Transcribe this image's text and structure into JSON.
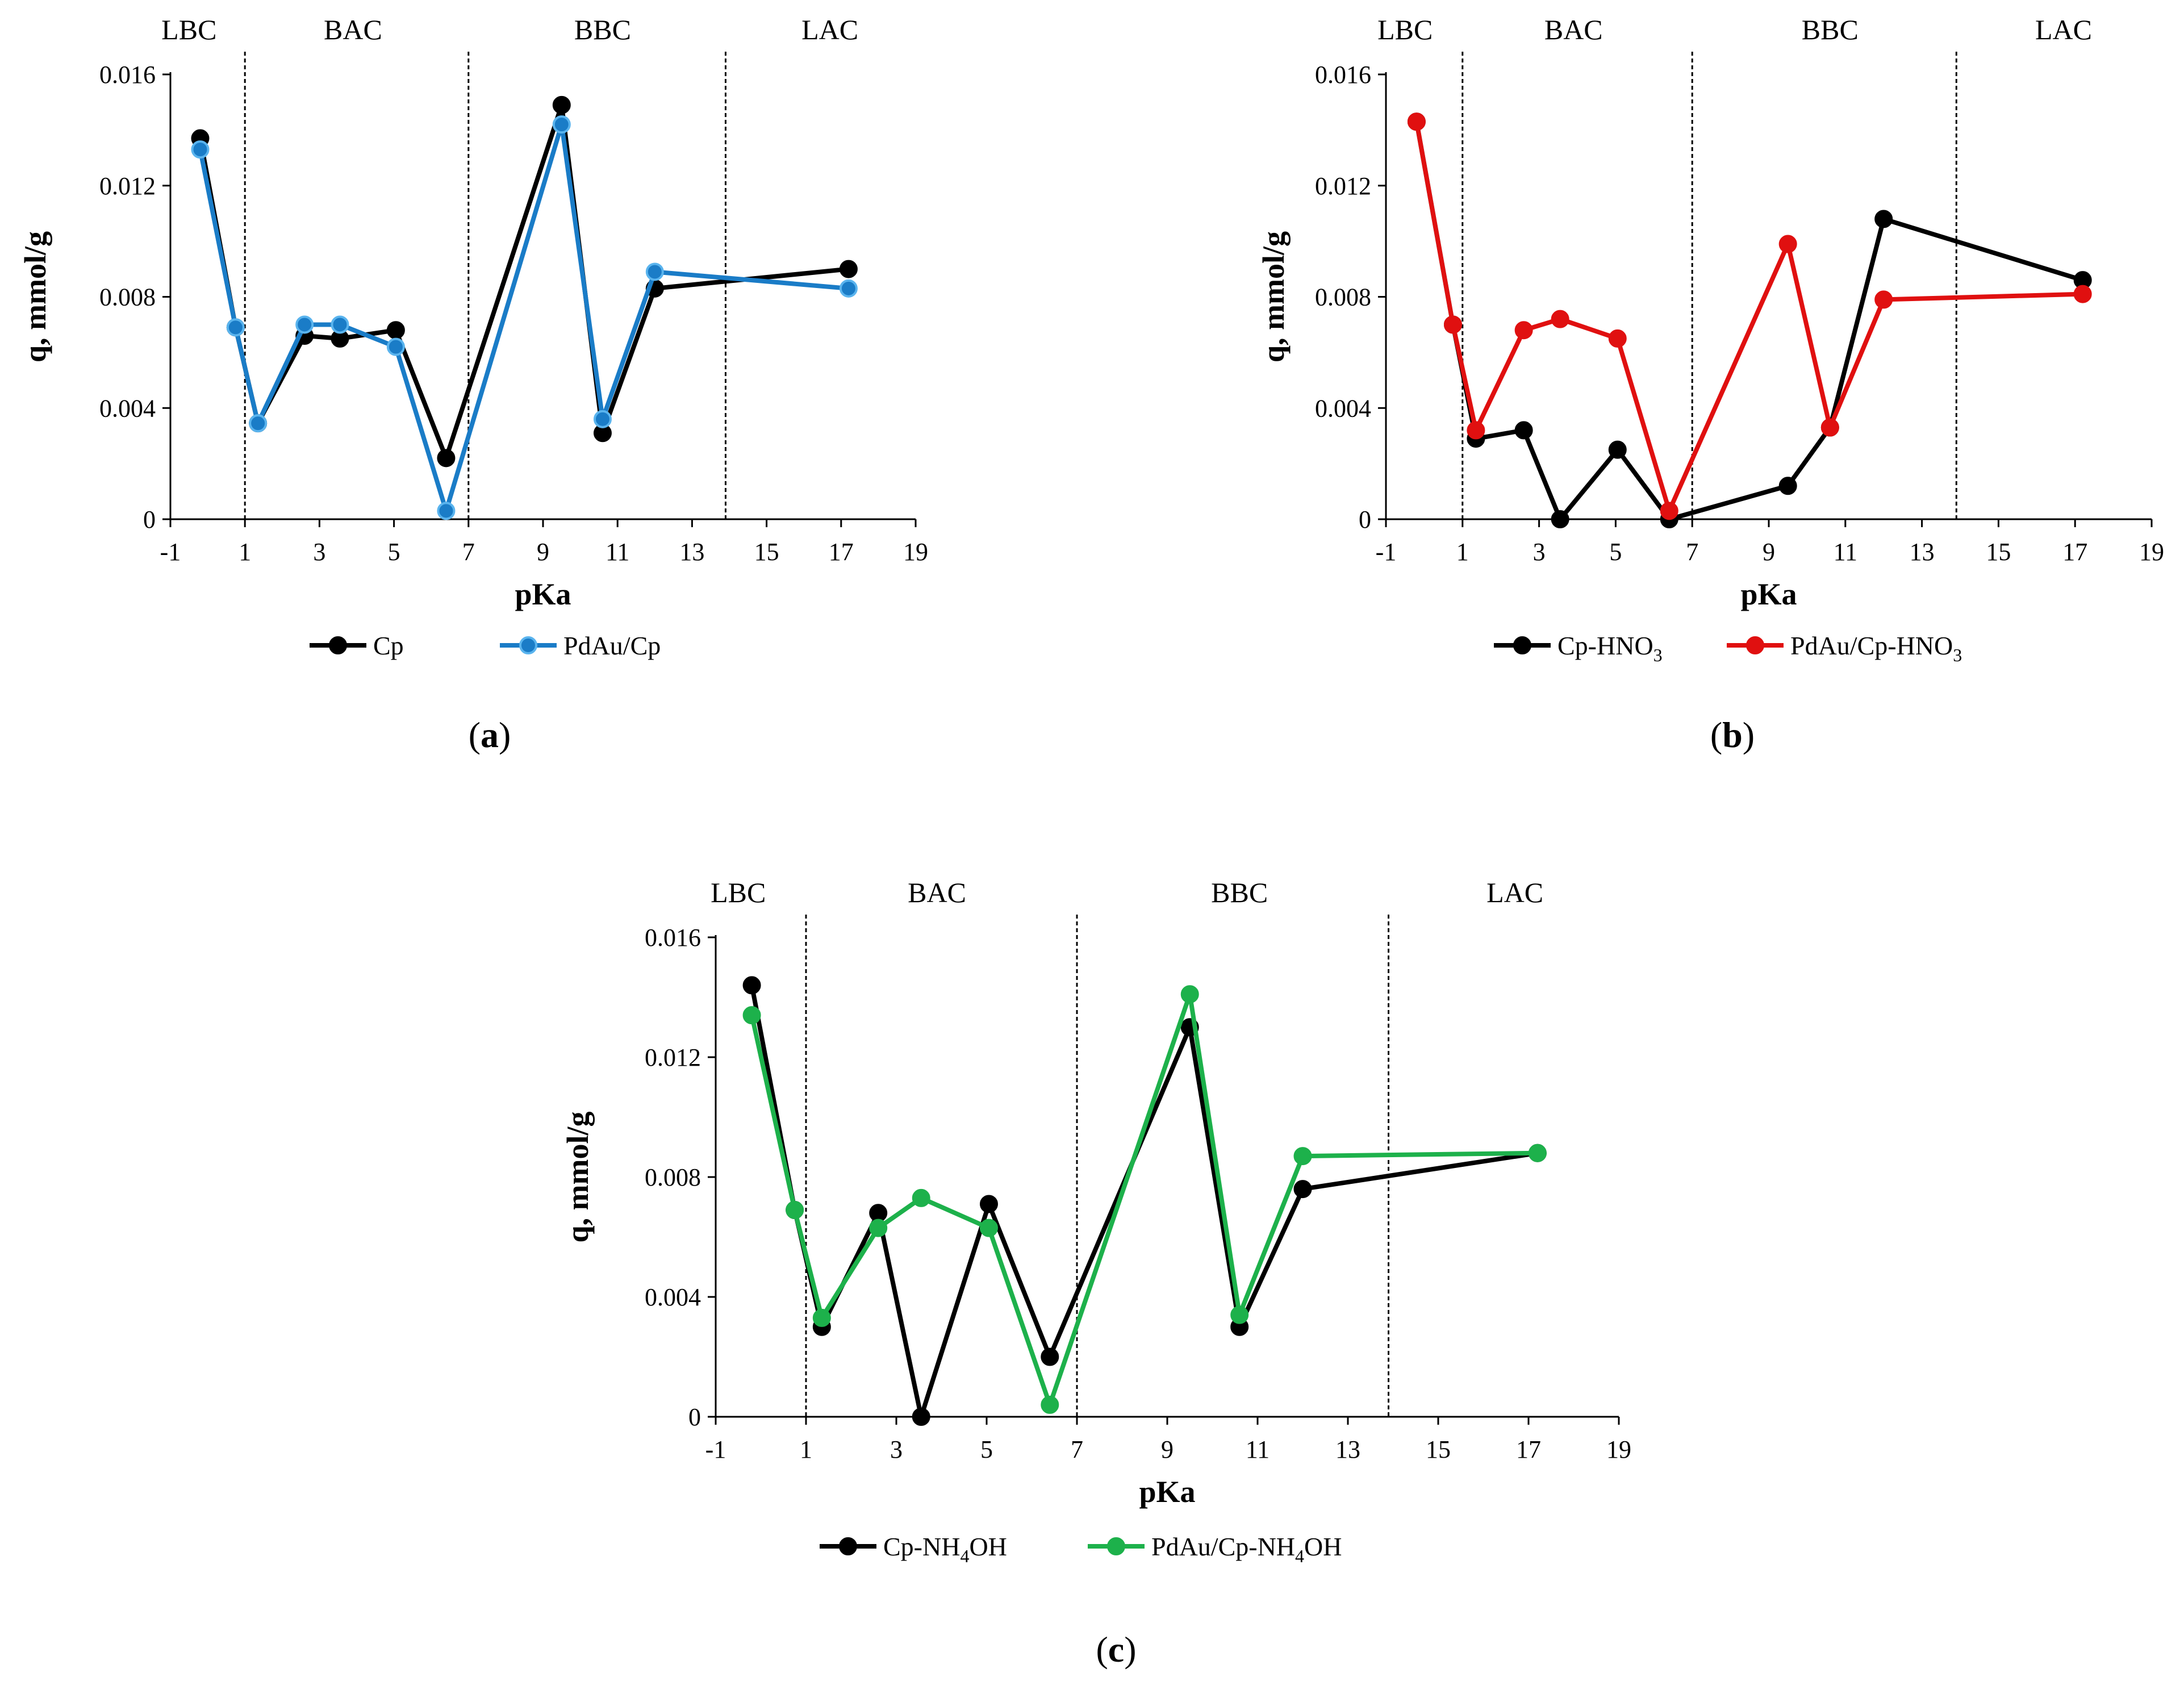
{
  "figure": {
    "colors": {
      "axis": "#000000",
      "black_series": "#000000",
      "blue_series": "#1a7cc7",
      "red_series": "#e01010",
      "green_series": "#1db14b"
    }
  },
  "chart_data": [
    {
      "id": "a",
      "type": "line",
      "panel_label": {
        "open": "(",
        "letter": "a",
        "close": ")"
      },
      "xlabel": "pKa",
      "ylabel": "q, mmol/g",
      "xlim": [
        -1,
        19
      ],
      "ylim": [
        0,
        0.016
      ],
      "xticks": [
        -1,
        1,
        3,
        5,
        7,
        9,
        11,
        13,
        15,
        17,
        19
      ],
      "yticks": [
        0,
        0.004,
        0.008,
        0.012,
        0.016
      ],
      "ytick_labels": [
        "0",
        "0.004",
        "0.008",
        "0.012",
        "0.016"
      ],
      "region_boundaries": [
        1,
        7,
        13.9
      ],
      "regions": [
        {
          "label": "LBC",
          "x": -0.5
        },
        {
          "label": "BAC",
          "x": 3.9
        },
        {
          "label": "BBC",
          "x": 10.6
        },
        {
          "label": "LAC",
          "x": 16.7
        }
      ],
      "series": [
        {
          "name": "Cp",
          "name_base": "Cp",
          "name_sub": "",
          "name_tail": "",
          "color": "#000000",
          "x": [
            -0.2,
            0.75,
            1.35,
            2.6,
            3.55,
            5.05,
            6.4,
            9.5,
            10.6,
            12.0,
            17.2
          ],
          "y": [
            0.0137,
            0.0069,
            0.00345,
            0.0066,
            0.0065,
            0.0068,
            0.0022,
            0.0149,
            0.0031,
            0.0083,
            0.009
          ]
        },
        {
          "name": "PdAu/Cp",
          "name_base": "PdAu/Cp",
          "name_sub": "",
          "name_tail": "",
          "color": "#1a7cc7",
          "x": [
            -0.2,
            0.75,
            1.35,
            2.6,
            3.55,
            5.05,
            6.4,
            9.5,
            10.6,
            12.0,
            17.2
          ],
          "y": [
            0.0133,
            0.0069,
            0.00345,
            0.007,
            0.007,
            0.0062,
            0.0003,
            0.0142,
            0.0036,
            0.0089,
            0.0083
          ]
        }
      ]
    },
    {
      "id": "b",
      "type": "line",
      "panel_label": {
        "open": "(",
        "letter": "b",
        "close": ")"
      },
      "xlabel": "pKa",
      "ylabel": "q, mmol/g",
      "xlim": [
        -1,
        19
      ],
      "ylim": [
        0,
        0.016
      ],
      "xticks": [
        -1,
        1,
        3,
        5,
        7,
        9,
        11,
        13,
        15,
        17,
        19
      ],
      "yticks": [
        0,
        0.004,
        0.008,
        0.012,
        0.016
      ],
      "ytick_labels": [
        "0",
        "0.004",
        "0.008",
        "0.012",
        "0.016"
      ],
      "region_boundaries": [
        1,
        7,
        13.9
      ],
      "regions": [
        {
          "label": "LBC",
          "x": -0.5
        },
        {
          "label": "BAC",
          "x": 3.9
        },
        {
          "label": "BBC",
          "x": 10.6
        },
        {
          "label": "LAC",
          "x": 16.7
        }
      ],
      "series": [
        {
          "name": "Cp-HNO3",
          "name_base": "Cp-HNO",
          "name_sub": "3",
          "name_tail": "",
          "color": "#000000",
          "x": [
            -0.2,
            0.75,
            1.35,
            2.6,
            3.55,
            5.05,
            6.4,
            9.5,
            10.6,
            12.0,
            17.2
          ],
          "y": [
            0.0143,
            0.007,
            0.0029,
            0.0032,
            0.0,
            0.0025,
            0.0,
            0.0012,
            0.0033,
            0.0108,
            0.0086
          ]
        },
        {
          "name": "PdAu/Cp-HNO3",
          "name_base": "PdAu/Cp-HNO",
          "name_sub": "3",
          "name_tail": "",
          "color": "#e01010",
          "x": [
            -0.2,
            0.75,
            1.35,
            2.6,
            3.55,
            5.05,
            6.4,
            9.5,
            10.6,
            12.0,
            17.2
          ],
          "y": [
            0.0143,
            0.007,
            0.0032,
            0.0068,
            0.0072,
            0.0065,
            0.0003,
            0.0099,
            0.0033,
            0.0079,
            0.0081
          ]
        }
      ]
    },
    {
      "id": "c",
      "type": "line",
      "panel_label": {
        "open": "(",
        "letter": "c",
        "close": ")"
      },
      "xlabel": "pKa",
      "ylabel": "q, mmol/g",
      "xlim": [
        -1,
        19
      ],
      "ylim": [
        0,
        0.016
      ],
      "xticks": [
        -1,
        1,
        3,
        5,
        7,
        9,
        11,
        13,
        15,
        17,
        19
      ],
      "yticks": [
        0,
        0.004,
        0.008,
        0.012,
        0.016
      ],
      "ytick_labels": [
        "0",
        "0.004",
        "0.008",
        "0.012",
        "0.016"
      ],
      "region_boundaries": [
        1,
        7,
        13.9
      ],
      "regions": [
        {
          "label": "LBC",
          "x": -0.5
        },
        {
          "label": "BAC",
          "x": 3.9
        },
        {
          "label": "BBC",
          "x": 10.6
        },
        {
          "label": "LAC",
          "x": 16.7
        }
      ],
      "series": [
        {
          "name": "Cp-NH4OH",
          "name_base": "Cp-NH",
          "name_sub": "4",
          "name_tail": "OH",
          "color": "#000000",
          "x": [
            -0.2,
            0.75,
            1.35,
            2.6,
            3.55,
            5.05,
            6.4,
            9.5,
            10.6,
            12.0,
            17.2
          ],
          "y": [
            0.0144,
            0.0069,
            0.003,
            0.0068,
            0.0,
            0.0071,
            0.002,
            0.013,
            0.003,
            0.0076,
            0.0088
          ]
        },
        {
          "name": "PdAu/Cp-NH4OH",
          "name_base": "PdAu/Cp-NH",
          "name_sub": "4",
          "name_tail": "OH",
          "color": "#1db14b",
          "x": [
            -0.2,
            0.75,
            1.35,
            2.6,
            3.55,
            5.05,
            6.4,
            9.5,
            10.6,
            12.0,
            17.2
          ],
          "y": [
            0.0134,
            0.0069,
            0.0033,
            0.0063,
            0.0073,
            0.0063,
            0.0004,
            0.0141,
            0.0034,
            0.0087,
            0.0088
          ]
        }
      ]
    }
  ]
}
